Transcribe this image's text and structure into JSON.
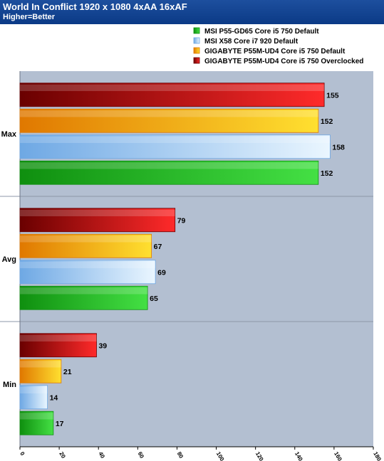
{
  "header": {
    "title": "World In Conflict 1920 x 1080 4xAA 16xAF",
    "subtitle": "Higher=Better"
  },
  "colors": {
    "header_bg": "#0b3a86",
    "plot_bg": "#b3bfd1",
    "green": "#22b822",
    "blue": "#a8d0f5",
    "orange": "#f0a010",
    "red": "#d81010"
  },
  "chart_data": {
    "type": "bar",
    "orientation": "horizontal",
    "title": "World In Conflict 1920 x 1080 4xAA 16xAF",
    "subtitle": "Higher=Better",
    "categories": [
      "Max",
      "Avg",
      "Min"
    ],
    "series": [
      {
        "name": "MSI P55-GD65 Core i5 750 Default",
        "color": "green",
        "values": [
          152,
          65,
          17
        ]
      },
      {
        "name": "MSI X58 Core i7 920 Default",
        "color": "blue",
        "values": [
          158,
          69,
          14
        ]
      },
      {
        "name": "GIGABYTE P55M-UD4 Core i5 750 Default",
        "color": "orange",
        "values": [
          152,
          67,
          21
        ]
      },
      {
        "name": "GIGABYTE P55M-UD4 Core i5 750 Overclocked",
        "color": "red",
        "values": [
          155,
          79,
          39
        ]
      }
    ],
    "xlim": [
      0,
      180
    ],
    "xticks": [
      0,
      20,
      40,
      60,
      80,
      100,
      120,
      140,
      160,
      180
    ],
    "legend": "top-right",
    "xlabel": "",
    "ylabel": ""
  }
}
